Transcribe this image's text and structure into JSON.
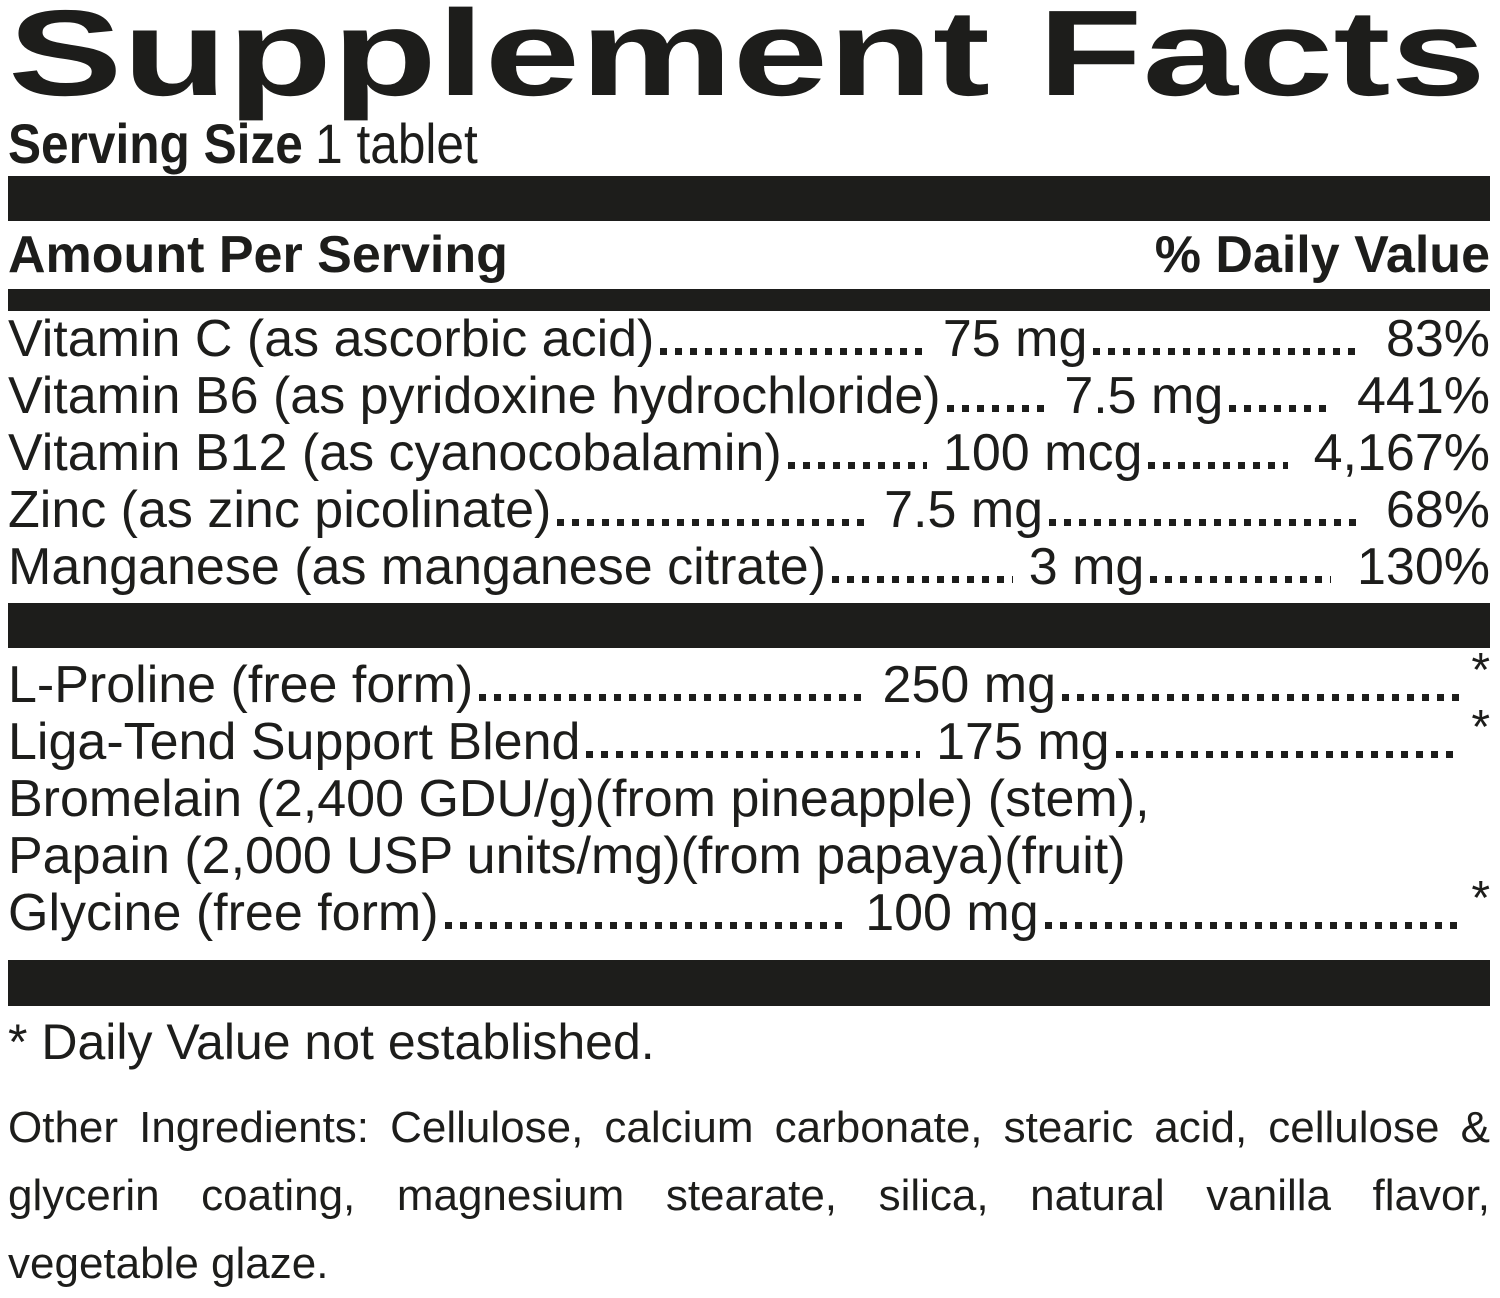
{
  "title": "Supplement Facts",
  "serving": {
    "label": "Serving Size",
    "value": "1 tablet"
  },
  "header": {
    "left": "Amount Per Serving",
    "right": "% Daily Value"
  },
  "nutrients": [
    {
      "name": "Vitamin C (as ascorbic acid)",
      "amount": "75 mg",
      "dv": "83%"
    },
    {
      "name": "Vitamin B6 (as pyridoxine hydrochloride)",
      "amount": "7.5 mg",
      "dv": "441%"
    },
    {
      "name": "Vitamin B12 (as cyanocobalamin)",
      "amount": "100 mcg",
      "dv": "4,167%"
    },
    {
      "name": "Zinc (as zinc picolinate)",
      "amount": "7.5 mg",
      "dv": "68%"
    },
    {
      "name": "Manganese (as manganese citrate)",
      "amount": "3 mg",
      "dv": "130%"
    }
  ],
  "blend": [
    {
      "name": "L-Proline (free form)",
      "amount": "250 mg",
      "dv": "*"
    },
    {
      "name": "Liga-Tend Support Blend",
      "amount": "175 mg",
      "dv": "*"
    },
    {
      "name": "Bromelain (2,400 GDU/g)(from pineapple) (stem),"
    },
    {
      "name": "Papain (2,000 USP units/mg)(from papaya)(fruit)"
    },
    {
      "name": "Glycine (free form)",
      "amount": "100 mg",
      "dv": "*"
    }
  ],
  "footnote": "* Daily Value not established.",
  "other_ingredients": {
    "lines": [
      "Other Ingredients: Cellulose, calcium carbonate, stearic acid, cellulose &",
      "glycerin coating, magnesium stearate, silica, natural vanilla flavor,",
      "vegetable glaze."
    ]
  },
  "colors": {
    "text": "#1d1d1b",
    "bar": "#1d1d1b",
    "background": "#ffffff"
  }
}
